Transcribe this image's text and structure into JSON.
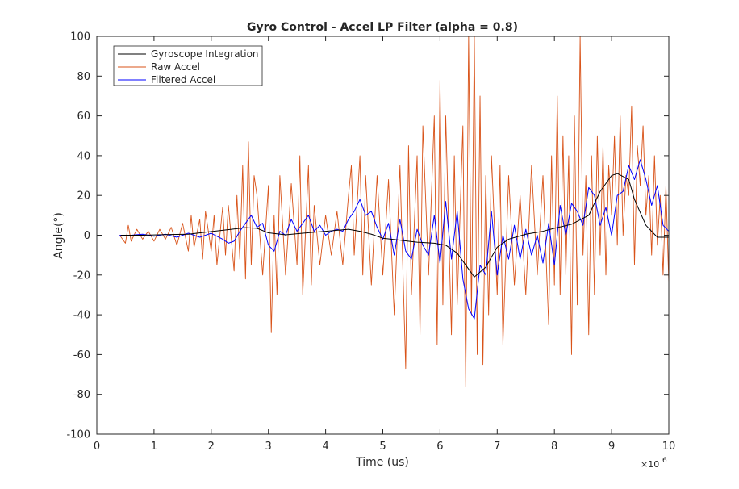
{
  "chart_data": {
    "type": "line",
    "title": "Gyro Control - Accel LP Filter (alpha = 0.8)",
    "xlabel": "Time (us)",
    "ylabel": "Angle(°)",
    "x_exponent_base": "×10",
    "x_exponent_power": "6",
    "xlim": [
      0,
      10
    ],
    "ylim": [
      -100,
      100
    ],
    "xticks": [
      0,
      1,
      2,
      3,
      4,
      5,
      6,
      7,
      8,
      9,
      10
    ],
    "yticks": [
      -100,
      -80,
      -60,
      -40,
      -20,
      0,
      20,
      40,
      60,
      80,
      100
    ],
    "grid": false,
    "legend_position": "top-left",
    "series": [
      {
        "name": "Gyroscope Integration",
        "color": "#000000",
        "x": [
          0.42,
          0.8,
          1.2,
          1.6,
          1.9,
          2.2,
          2.6,
          2.8,
          3.0,
          3.3,
          3.6,
          4.0,
          4.4,
          4.6,
          4.8,
          5.0,
          5.3,
          5.6,
          5.9,
          6.1,
          6.3,
          6.5,
          6.6,
          6.8,
          7.0,
          7.2,
          7.5,
          7.8,
          8.0,
          8.3,
          8.6,
          8.8,
          9.0,
          9.1,
          9.3,
          9.4,
          9.6,
          9.8,
          10.0
        ],
        "y": [
          0,
          0,
          0.3,
          0.5,
          1.5,
          2.5,
          3.8,
          3.5,
          1.2,
          0.2,
          1.0,
          2.0,
          3.0,
          2.0,
          0.5,
          -1.5,
          -2.5,
          -3.5,
          -4.0,
          -5.0,
          -9.0,
          -17.0,
          -21.0,
          -16.0,
          -6.0,
          -2.0,
          0.5,
          2.0,
          3.5,
          5.5,
          10.0,
          22.0,
          30.0,
          31.0,
          28.0,
          18.0,
          5.0,
          -1.0,
          -1.0
        ]
      },
      {
        "name": "Raw Accel",
        "color": "#D95319",
        "x": [
          0.4,
          0.5,
          0.55,
          0.6,
          0.7,
          0.8,
          0.9,
          1.0,
          1.1,
          1.2,
          1.3,
          1.4,
          1.5,
          1.6,
          1.65,
          1.7,
          1.8,
          1.85,
          1.9,
          2.0,
          2.05,
          2.1,
          2.2,
          2.25,
          2.3,
          2.4,
          2.45,
          2.5,
          2.55,
          2.6,
          2.65,
          2.7,
          2.75,
          2.8,
          2.9,
          3.0,
          3.05,
          3.1,
          3.15,
          3.2,
          3.3,
          3.4,
          3.5,
          3.55,
          3.6,
          3.7,
          3.75,
          3.8,
          3.9,
          4.0,
          4.1,
          4.2,
          4.3,
          4.4,
          4.45,
          4.5,
          4.6,
          4.65,
          4.7,
          4.8,
          4.9,
          5.0,
          5.1,
          5.2,
          5.3,
          5.4,
          5.45,
          5.5,
          5.6,
          5.65,
          5.7,
          5.8,
          5.9,
          5.95,
          6.0,
          6.05,
          6.1,
          6.2,
          6.25,
          6.3,
          6.4,
          6.45,
          6.5,
          6.55,
          6.6,
          6.65,
          6.7,
          6.75,
          6.8,
          6.85,
          6.9,
          7.0,
          7.05,
          7.1,
          7.2,
          7.3,
          7.4,
          7.5,
          7.6,
          7.7,
          7.8,
          7.9,
          7.95,
          8.0,
          8.05,
          8.1,
          8.15,
          8.2,
          8.25,
          8.3,
          8.35,
          8.4,
          8.45,
          8.5,
          8.55,
          8.6,
          8.65,
          8.7,
          8.75,
          8.8,
          8.85,
          8.9,
          8.95,
          9.0,
          9.05,
          9.1,
          9.15,
          9.2,
          9.25,
          9.3,
          9.35,
          9.4,
          9.45,
          9.5,
          9.55,
          9.6,
          9.65,
          9.7,
          9.75,
          9.8,
          9.85,
          9.9,
          9.95,
          10.0
        ],
        "y": [
          0,
          -4,
          5,
          -3,
          3,
          -2,
          2,
          -3,
          3,
          -2,
          4,
          -5,
          6,
          -8,
          10,
          -6,
          8,
          -12,
          12,
          -8,
          10,
          -15,
          14,
          -10,
          15,
          -18,
          20,
          -12,
          35,
          -22,
          47,
          -15,
          30,
          20,
          -20,
          25,
          -49,
          10,
          -30,
          30,
          -20,
          26,
          -15,
          40,
          -30,
          35,
          -25,
          15,
          -15,
          10,
          -10,
          12,
          -15,
          20,
          35,
          -10,
          40,
          -20,
          30,
          -25,
          30,
          -20,
          28,
          -40,
          35,
          -67,
          45,
          -30,
          40,
          -50,
          55,
          -20,
          60,
          -55,
          78,
          -35,
          60,
          -50,
          40,
          -35,
          55,
          -76,
          100,
          -40,
          100,
          -60,
          70,
          -65,
          30,
          -40,
          40,
          -30,
          35,
          -55,
          30,
          -25,
          20,
          -30,
          35,
          -20,
          30,
          -45,
          40,
          -25,
          70,
          -30,
          50,
          -20,
          40,
          -60,
          60,
          -35,
          100,
          -10,
          30,
          -50,
          40,
          -30,
          50,
          -10,
          45,
          -20,
          35,
          10,
          50,
          -5,
          60,
          0,
          30,
          20,
          65,
          -15,
          45,
          25,
          55,
          10,
          30,
          -10,
          40,
          -5,
          20,
          -20,
          25,
          -24
        ]
      },
      {
        "name": "Filtered Accel",
        "color": "#0000FF",
        "x": [
          0.4,
          0.6,
          0.8,
          1.0,
          1.2,
          1.4,
          1.6,
          1.8,
          2.0,
          2.2,
          2.3,
          2.4,
          2.5,
          2.6,
          2.7,
          2.8,
          2.9,
          3.0,
          3.1,
          3.2,
          3.3,
          3.4,
          3.5,
          3.6,
          3.7,
          3.8,
          3.9,
          4.0,
          4.1,
          4.2,
          4.3,
          4.4,
          4.5,
          4.6,
          4.7,
          4.8,
          4.9,
          5.0,
          5.1,
          5.2,
          5.3,
          5.4,
          5.5,
          5.6,
          5.7,
          5.8,
          5.9,
          6.0,
          6.1,
          6.2,
          6.3,
          6.4,
          6.5,
          6.6,
          6.7,
          6.8,
          6.9,
          7.0,
          7.1,
          7.2,
          7.3,
          7.4,
          7.5,
          7.6,
          7.7,
          7.8,
          7.9,
          8.0,
          8.1,
          8.2,
          8.3,
          8.4,
          8.5,
          8.6,
          8.7,
          8.8,
          8.9,
          9.0,
          9.1,
          9.2,
          9.3,
          9.4,
          9.5,
          9.6,
          9.7,
          9.8,
          9.9,
          10.0
        ],
        "y": [
          0,
          0,
          0.5,
          -0.5,
          0.5,
          -1,
          1,
          -1,
          1,
          -2,
          -4,
          -3,
          2,
          6,
          10,
          4,
          6,
          -5,
          -8,
          2,
          0,
          8,
          2,
          6,
          10,
          2,
          5,
          0,
          2,
          3,
          2,
          8,
          12,
          18,
          10,
          12,
          4,
          -2,
          6,
          -10,
          8,
          -8,
          -12,
          3,
          -5,
          -10,
          10,
          -14,
          17,
          -12,
          12,
          -22,
          -37,
          -42,
          -15,
          -20,
          12,
          -20,
          0,
          -12,
          5,
          -12,
          3,
          -10,
          0,
          -14,
          6,
          -15,
          15,
          0,
          16,
          12,
          5,
          24,
          20,
          5,
          14,
          0,
          20,
          22,
          35,
          28,
          38,
          28,
          15,
          25,
          5,
          2
        ]
      }
    ]
  }
}
